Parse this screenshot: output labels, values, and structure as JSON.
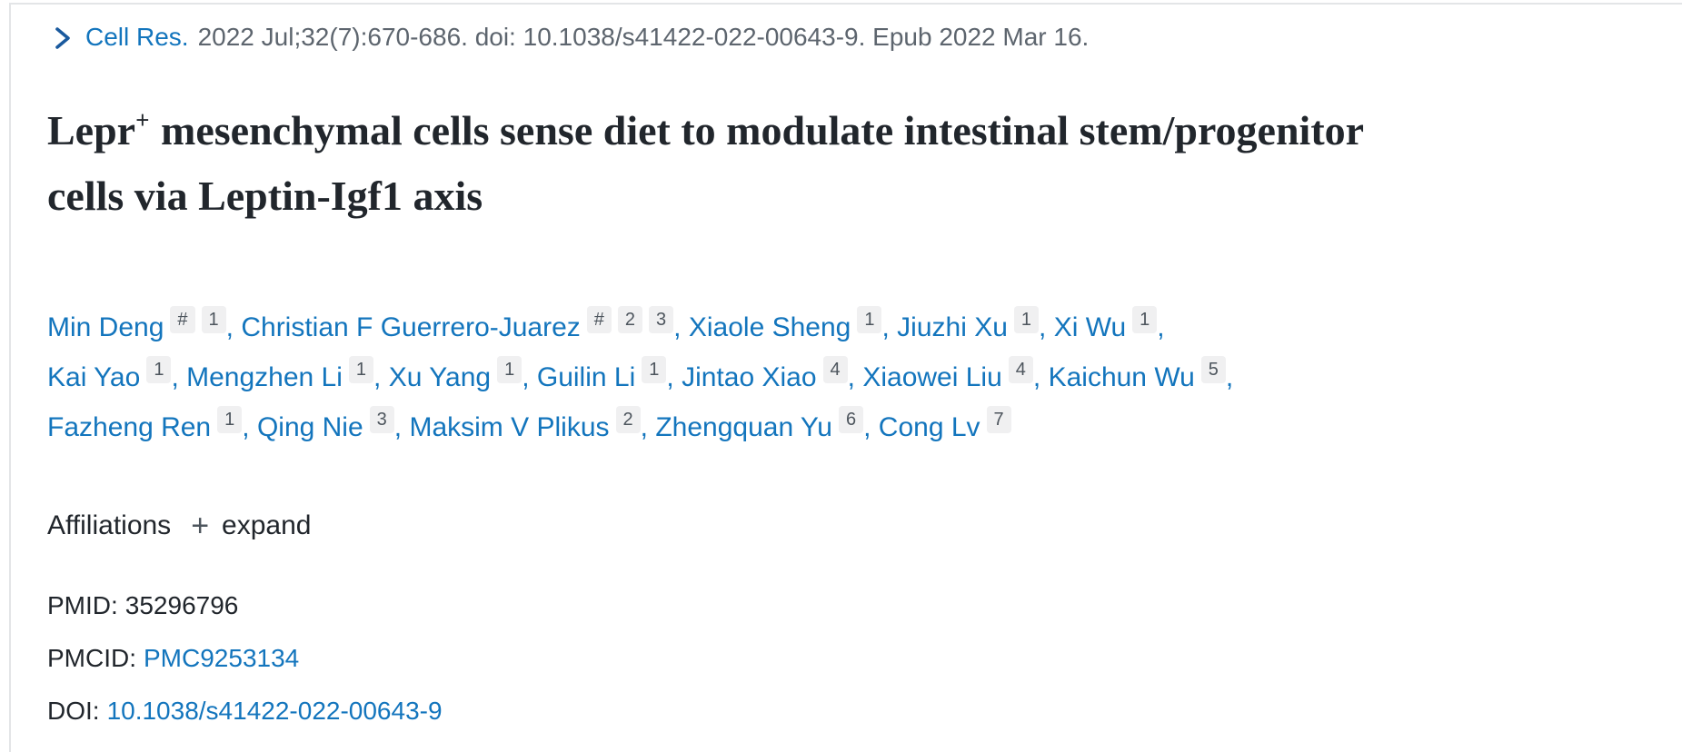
{
  "colors": {
    "link-blue": "#1375bd",
    "chevron-blue": "#1a5a9e",
    "text-dark": "#21262c",
    "text-gray": "#5d656e",
    "badge-bg": "#f0f0f1",
    "badge-text": "#4d555d",
    "border-gray": "#e3e5e7"
  },
  "citation": {
    "chevron_icon": "chevron-right-icon",
    "journal": "Cell Res.",
    "meta": "2022 Jul;32(7):670-686. doi: 10.1038/s41422-022-00643-9. Epub 2022 Mar 16."
  },
  "title": {
    "prefix": "Lepr",
    "sup": "+",
    "rest": " mesenchymal cells sense diet to modulate intestinal stem/progenitor cells via Leptin-Igf1 axis"
  },
  "authors": {
    "list": [
      {
        "name": "Min Deng",
        "sups": [
          "#",
          "1"
        ]
      },
      {
        "name": "Christian F Guerrero-Juarez",
        "sups": [
          "#",
          "2",
          "3"
        ]
      },
      {
        "name": "Xiaole Sheng",
        "sups": [
          "1"
        ]
      },
      {
        "name": "Jiuzhi Xu",
        "sups": [
          "1"
        ]
      },
      {
        "name": "Xi Wu",
        "sups": [
          "1"
        ],
        "break_after": true
      },
      {
        "name": "Kai Yao",
        "sups": [
          "1"
        ]
      },
      {
        "name": "Mengzhen Li",
        "sups": [
          "1"
        ]
      },
      {
        "name": "Xu Yang",
        "sups": [
          "1"
        ]
      },
      {
        "name": "Guilin Li",
        "sups": [
          "1"
        ]
      },
      {
        "name": "Jintao Xiao",
        "sups": [
          "4"
        ]
      },
      {
        "name": "Xiaowei Liu",
        "sups": [
          "4"
        ]
      },
      {
        "name": "Kaichun Wu",
        "sups": [
          "5"
        ],
        "break_after": true
      },
      {
        "name": "Fazheng Ren",
        "sups": [
          "1"
        ]
      },
      {
        "name": "Qing Nie",
        "sups": [
          "3"
        ]
      },
      {
        "name": "Maksim V Plikus",
        "sups": [
          "2"
        ]
      },
      {
        "name": "Zhengquan Yu",
        "sups": [
          "6"
        ]
      },
      {
        "name": "Cong Lv",
        "sups": [
          "7"
        ]
      }
    ]
  },
  "affiliations": {
    "heading": "Affiliations",
    "plus_icon": "+",
    "expand_label": "expand"
  },
  "identifiers": [
    {
      "label": "PMID:",
      "value": "35296796",
      "link": false
    },
    {
      "label": "PMCID:",
      "value": "PMC9253134",
      "link": true
    },
    {
      "label": "DOI:",
      "value": "10.1038/s41422-022-00643-9",
      "link": true
    }
  ]
}
